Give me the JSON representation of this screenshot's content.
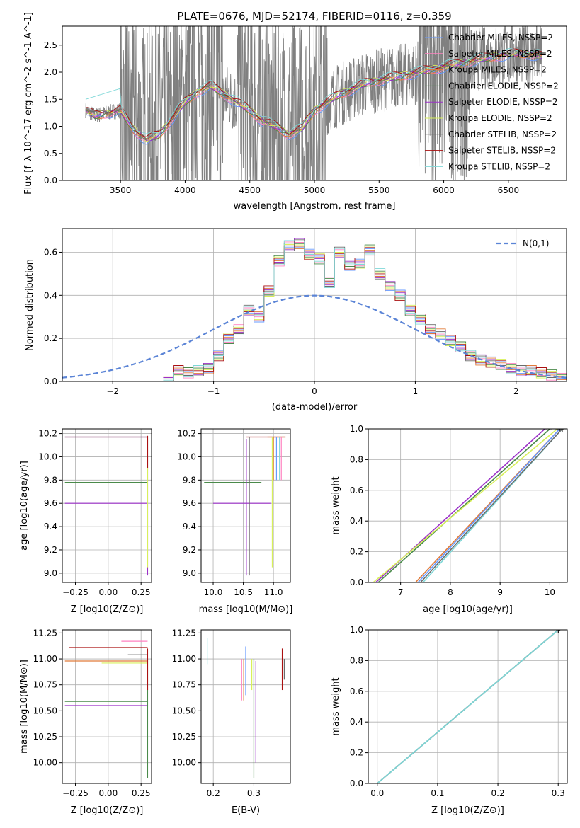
{
  "figure_title": "PLATE=0676, MJD=52174, FIBERID=0116, z=0.359",
  "colors": {
    "spectrum": "#808080",
    "gauss": "#5b84d6",
    "grid": "#b0b0b0",
    "models": [
      "#6699ff",
      "#ff80c0",
      "#e07b39",
      "#4a8a4a",
      "#9b30c8",
      "#d8f05a",
      "#6b6b6b",
      "#aa1111",
      "#7fd8d8"
    ]
  },
  "legend_models": [
    {
      "label": "Chabrier MILES, N_SSP=2",
      "color": "#6699ff"
    },
    {
      "label": "Salpeter MILES, N_SSP=2",
      "color": "#ff80c0"
    },
    {
      "label": "Kroupa MILES, N_SSP=2",
      "color": "#e07b39"
    },
    {
      "label": "Chabrier ELODIE, N_SSP=2",
      "color": "#4a8a4a"
    },
    {
      "label": "Salpeter ELODIE, N_SSP=2",
      "color": "#9b30c8"
    },
    {
      "label": "Kroupa ELODIE, N_SSP=2",
      "color": "#d8f05a"
    },
    {
      "label": "Chabrier STELIB, N_SSP=2",
      "color": "#6b6b6b"
    },
    {
      "label": "Salpeter STELIB, N_SSP=2",
      "color": "#aa1111"
    },
    {
      "label": "Kroupa STELIB, N_SSP=2",
      "color": "#7fd8d8"
    }
  ],
  "chart_data": [
    {
      "id": "spectrum",
      "type": "line",
      "xlabel": "wavelength [Angstrom, rest frame]",
      "ylabel": "Flux [f_λ 10^-17 erg cm^-2 s^-1 A^-1]",
      "xlim": [
        3050,
        6950
      ],
      "ylim": [
        0,
        2.85
      ],
      "xticks": [
        3500,
        4000,
        4500,
        5000,
        5500,
        6000,
        6500
      ],
      "yticks": [
        0.0,
        0.5,
        1.0,
        1.5,
        2.0,
        2.5
      ],
      "model_continuum": {
        "x": [
          3230,
          3300,
          3400,
          3500,
          3600,
          3700,
          3800,
          3900,
          4000,
          4100,
          4200,
          4300,
          4400,
          4500,
          4600,
          4700,
          4800,
          4900,
          5000,
          5200,
          5400,
          5600,
          5800,
          6000,
          6200,
          6400,
          6600,
          6760
        ],
        "y": [
          1.3,
          1.2,
          1.25,
          1.3,
          0.95,
          0.75,
          0.85,
          1.15,
          1.45,
          1.65,
          1.75,
          1.6,
          1.45,
          1.3,
          1.1,
          1.0,
          0.85,
          0.95,
          1.3,
          1.6,
          1.8,
          1.9,
          2.0,
          2.1,
          2.2,
          2.3,
          2.35,
          2.3
        ]
      },
      "kroupa_stelib_blue": {
        "x": [
          3230,
          3300,
          3400,
          3500
        ],
        "y": [
          1.5,
          1.6,
          1.7,
          1.45
        ]
      }
    },
    {
      "id": "residual_hist",
      "type": "histogram",
      "xlabel": "(data-model)/error",
      "ylabel": "Normed distribution",
      "xlim": [
        -2.5,
        2.5
      ],
      "ylim": [
        0,
        0.71
      ],
      "xticks": [
        -2,
        -1,
        0,
        1,
        2
      ],
      "yticks": [
        0.0,
        0.2,
        0.4,
        0.6
      ],
      "legend": "N(0,1)",
      "bin_edges": [
        -1.5,
        -1.4,
        -1.3,
        -1.2,
        -1.1,
        -1.0,
        -0.9,
        -0.8,
        -0.7,
        -0.6,
        -0.5,
        -0.4,
        -0.3,
        -0.2,
        -0.1,
        0.0,
        0.1,
        0.2,
        0.3,
        0.4,
        0.5,
        0.6,
        0.7,
        0.8,
        0.9,
        1.0,
        1.1,
        1.2,
        1.3,
        1.4,
        1.5,
        1.6,
        1.7,
        1.8,
        1.9,
        2.0,
        2.1,
        2.2,
        2.3,
        2.4,
        2.5
      ],
      "values": [
        0.0,
        0.05,
        0.04,
        0.05,
        0.06,
        0.12,
        0.2,
        0.24,
        0.33,
        0.3,
        0.42,
        0.56,
        0.63,
        0.64,
        0.59,
        0.57,
        0.46,
        0.6,
        0.54,
        0.55,
        0.61,
        0.5,
        0.44,
        0.4,
        0.33,
        0.29,
        0.24,
        0.22,
        0.19,
        0.16,
        0.12,
        0.1,
        0.09,
        0.08,
        0.06,
        0.05,
        0.05,
        0.04,
        0.03,
        0.02
      ]
    },
    {
      "id": "age_vs_Z",
      "type": "errorbar",
      "xlabel": "Z [log10(Z/Z⊙)]",
      "ylabel": "age [log10(age/yr)]",
      "xlim": [
        -0.35,
        0.33
      ],
      "ylim": [
        8.92,
        10.24
      ],
      "xticks": [
        -0.25,
        0.0,
        0.25
      ],
      "yticks": [
        9.0,
        9.2,
        9.4,
        9.6,
        9.8,
        10.0,
        10.2
      ],
      "xticklabels": [
        "-0.25",
        "0.00",
        "0.25"
      ],
      "hlines": [
        {
          "y": 10.17,
          "x0": -0.33,
          "x1": 0.3,
          "c": 0
        },
        {
          "y": 10.17,
          "x0": -0.33,
          "x1": 0.3,
          "c": 7
        },
        {
          "y": 9.78,
          "x0": -0.33,
          "x1": 0.3,
          "c": 3
        },
        {
          "y": 9.6,
          "x0": -0.33,
          "x1": 0.3,
          "c": 4
        }
      ],
      "vlines": [
        {
          "x": 0.3,
          "y0": 8.98,
          "y1": 10.18,
          "c": 4
        },
        {
          "x": 0.3,
          "y0": 9.05,
          "y1": 10.18,
          "c": 5
        },
        {
          "x": 0.3,
          "y0": 9.9,
          "y1": 10.18,
          "c": 7
        }
      ]
    },
    {
      "id": "age_vs_mass",
      "type": "errorbar",
      "xlabel": "mass [log10(M/M⊙)]",
      "ylabel": "",
      "xlim": [
        9.8,
        11.28
      ],
      "ylim": [
        8.92,
        10.24
      ],
      "xticks": [
        10.0,
        10.5,
        11.0
      ],
      "yticks": [
        9.0,
        9.2,
        9.4,
        9.6,
        9.8,
        10.0,
        10.2
      ],
      "xticklabels": [
        "10.0",
        "10.5",
        "11.0"
      ],
      "hlines": [
        {
          "y": 10.17,
          "x0": 10.55,
          "x1": 11.2,
          "c": 7
        },
        {
          "y": 10.17,
          "x0": 10.9,
          "x1": 11.2,
          "c": 2
        },
        {
          "y": 9.78,
          "x0": 9.85,
          "x1": 10.8,
          "c": 3
        },
        {
          "y": 9.6,
          "x0": 10.0,
          "x1": 10.95,
          "c": 4
        }
      ],
      "vlines": [
        {
          "x": 10.55,
          "y0": 8.98,
          "y1": 10.15,
          "c": 4
        },
        {
          "x": 10.6,
          "y0": 8.98,
          "y1": 10.17,
          "c": 6
        },
        {
          "x": 10.98,
          "y0": 9.05,
          "y1": 10.17,
          "c": 5
        },
        {
          "x": 11.0,
          "y0": 9.8,
          "y1": 10.17,
          "c": 2
        },
        {
          "x": 11.05,
          "y0": 9.8,
          "y1": 10.17,
          "c": 0
        },
        {
          "x": 11.1,
          "y0": 9.8,
          "y1": 10.17,
          "c": 8
        },
        {
          "x": 11.13,
          "y0": 9.8,
          "y1": 10.17,
          "c": 1
        }
      ]
    },
    {
      "id": "mass_weight_vs_age",
      "type": "line",
      "xlabel": "age [log10(age/yr)]",
      "ylabel": "mass weight",
      "xlim": [
        6.35,
        10.35
      ],
      "ylim": [
        0,
        1
      ],
      "xticks": [
        7,
        8,
        9,
        10
      ],
      "yticks": [
        0.0,
        0.2,
        0.4,
        0.6,
        0.8,
        1.0
      ],
      "series": [
        {
          "c": 4,
          "x": [
            6.5,
            9.9
          ],
          "y": [
            0,
            1
          ]
        },
        {
          "c": 3,
          "x": [
            6.55,
            10.0
          ],
          "y": [
            0,
            1
          ]
        },
        {
          "c": 5,
          "x": [
            6.45,
            10.15
          ],
          "y": [
            0,
            1
          ]
        },
        {
          "c": 2,
          "x": [
            7.3,
            10.2
          ],
          "y": [
            0,
            1
          ]
        },
        {
          "c": 0,
          "x": [
            7.35,
            10.2
          ],
          "y": [
            0,
            1
          ]
        },
        {
          "c": 8,
          "x": [
            7.45,
            10.25
          ],
          "y": [
            0,
            1
          ]
        },
        {
          "c": 6,
          "x": [
            7.4,
            10.25
          ],
          "y": [
            0,
            1
          ]
        }
      ]
    },
    {
      "id": "mass_vs_Z",
      "type": "errorbar",
      "xlabel": "Z [log10(Z/Z⊙)]",
      "ylabel": "mass [log10(M/M⊙)]",
      "xlim": [
        -0.35,
        0.33
      ],
      "ylim": [
        9.8,
        11.28
      ],
      "xticks": [
        -0.25,
        0.0,
        0.25
      ],
      "yticks": [
        10.0,
        10.25,
        10.5,
        10.75,
        11.0,
        11.25
      ],
      "xticklabels": [
        "-0.25",
        "0.00",
        "0.25"
      ],
      "hlines": [
        {
          "y": 11.11,
          "x0": -0.3,
          "x1": 0.3,
          "c": 7
        },
        {
          "y": 10.98,
          "x0": -0.33,
          "x1": 0.3,
          "c": 2
        },
        {
          "y": 10.59,
          "x0": -0.33,
          "x1": 0.3,
          "c": 3
        },
        {
          "y": 10.55,
          "x0": -0.33,
          "x1": 0.3,
          "c": 4
        },
        {
          "y": 11.17,
          "x0": 0.1,
          "x1": 0.3,
          "c": 1
        },
        {
          "y": 11.04,
          "x0": 0.15,
          "x1": 0.3,
          "c": 6
        },
        {
          "y": 10.96,
          "x0": -0.05,
          "x1": 0.3,
          "c": 5
        }
      ],
      "vlines": [
        {
          "x": 0.3,
          "y0": 9.85,
          "y1": 11.0,
          "c": 3
        },
        {
          "x": 0.3,
          "y0": 10.7,
          "y1": 11.1,
          "c": 7
        }
      ]
    },
    {
      "id": "mass_vs_ebv",
      "type": "errorbar",
      "xlabel": "E(B-V)",
      "ylabel": "",
      "xlim": [
        0.17,
        0.39
      ],
      "ylim": [
        9.8,
        11.28
      ],
      "xticks": [
        0.2,
        0.3
      ],
      "yticks": [
        10.0,
        10.25,
        10.5,
        10.75,
        11.0,
        11.25
      ],
      "xticklabels": [
        "0.2",
        "0.3"
      ],
      "vlines": [
        {
          "x": 0.185,
          "y0": 10.95,
          "y1": 11.2,
          "c": 8
        },
        {
          "x": 0.27,
          "y0": 10.6,
          "y1": 11.0,
          "c": 1
        },
        {
          "x": 0.275,
          "y0": 10.6,
          "y1": 11.0,
          "c": 2
        },
        {
          "x": 0.28,
          "y0": 10.65,
          "y1": 11.12,
          "c": 0
        },
        {
          "x": 0.295,
          "y0": 10.7,
          "y1": 11.0,
          "c": 5
        },
        {
          "x": 0.3,
          "y0": 9.85,
          "y1": 11.0,
          "c": 3
        },
        {
          "x": 0.305,
          "y0": 10.0,
          "y1": 10.98,
          "c": 4
        },
        {
          "x": 0.37,
          "y0": 10.7,
          "y1": 11.1,
          "c": 7
        },
        {
          "x": 0.375,
          "y0": 10.8,
          "y1": 11.0,
          "c": 6
        }
      ]
    },
    {
      "id": "mass_weight_vs_Z",
      "type": "line",
      "xlabel": "Z [log10(Z/Z⊙)]",
      "ylabel": "mass weight",
      "xlim": [
        -0.015,
        0.315
      ],
      "ylim": [
        0,
        1
      ],
      "xticks": [
        0.0,
        0.1,
        0.2,
        0.3
      ],
      "yticks": [
        0.0,
        0.2,
        0.4,
        0.6,
        0.8,
        1.0
      ],
      "xticklabels": [
        "0.0",
        "0.1",
        "0.2",
        "0.3"
      ],
      "series": [
        {
          "c": 0,
          "x": [
            0,
            0.3
          ],
          "y": [
            0,
            1
          ]
        },
        {
          "c": 3,
          "x": [
            0,
            0.3
          ],
          "y": [
            0,
            1
          ]
        },
        {
          "c": 6,
          "x": [
            0,
            0.3
          ],
          "y": [
            0,
            1
          ]
        },
        {
          "c": 8,
          "x": [
            0,
            0.3
          ],
          "y": [
            0,
            1
          ]
        }
      ]
    }
  ]
}
